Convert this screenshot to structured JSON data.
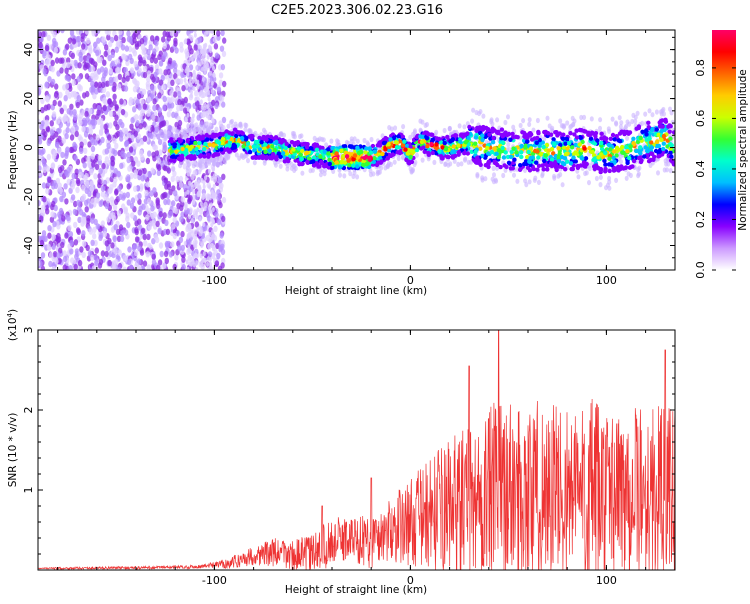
{
  "title": "C2E5.2023.306.02.23.G16",
  "chart_data": [
    {
      "type": "heatmap",
      "xlabel": "Height of straight line (km)",
      "ylabel": "Frequency (Hz)",
      "xlim": [
        -190,
        135
      ],
      "ylim": [
        -50,
        48
      ],
      "x_ticks": [
        -100,
        0,
        100
      ],
      "y_ticks": [
        -40,
        -20,
        0,
        20,
        40
      ],
      "grid": false,
      "colorbar": {
        "label": "Normalized spectral amplitude",
        "range": [
          0.0,
          0.95
        ],
        "ticks": [
          "0.0",
          "0.2",
          "0.4",
          "0.6",
          "0.8"
        ],
        "colors": [
          "#ffffff",
          "#cc99ff",
          "#8800ff",
          "#0000ff",
          "#00bfff",
          "#00ffcc",
          "#33ff33",
          "#ccff00",
          "#ffcc00",
          "#ff6600",
          "#ff0000",
          "#ff0066"
        ]
      },
      "ridge": {
        "x": [
          -120,
          -110,
          -100,
          -90,
          -85,
          -80,
          -70,
          -60,
          -50,
          -40,
          -30,
          -20,
          -15,
          -10,
          -5,
          0,
          5,
          10,
          15,
          20,
          25,
          30,
          40,
          50,
          60,
          70,
          80,
          90,
          100,
          110,
          120,
          130,
          135
        ],
        "y": [
          -1,
          0,
          1,
          3,
          2,
          0,
          0,
          -2,
          -3,
          -4,
          -4,
          -4,
          -2,
          1,
          2,
          -3,
          3,
          1,
          0,
          0,
          1,
          2,
          0,
          -1,
          -2,
          -1,
          -2,
          0,
          -3,
          -1,
          2,
          4,
          0
        ]
      }
    },
    {
      "type": "line",
      "xlabel": "Height of straight line (km)",
      "ylabel": "SNR (10 * v/v)",
      "y_scale_label": "(x10",
      "y_scale_exp": "4",
      "xlim": [
        -190,
        135
      ],
      "ylim": [
        0,
        3
      ],
      "x_ticks": [
        -100,
        0,
        100
      ],
      "y_ticks": [
        1,
        2,
        3
      ],
      "color": "#ee3333",
      "grid": false,
      "envelope": {
        "x": [
          -190,
          -130,
          -110,
          -100,
          -90,
          -80,
          -70,
          -60,
          -50,
          -40,
          -30,
          -20,
          -10,
          0,
          10,
          20,
          30,
          40,
          45,
          50,
          60,
          70,
          80,
          90,
          100,
          110,
          120,
          130,
          135
        ],
        "mean": [
          0.02,
          0.03,
          0.04,
          0.06,
          0.1,
          0.18,
          0.22,
          0.18,
          0.2,
          0.35,
          0.4,
          0.35,
          0.5,
          0.6,
          0.7,
          0.8,
          0.85,
          0.95,
          1.0,
          1.0,
          0.95,
          1.0,
          0.95,
          1.0,
          0.9,
          1.0,
          0.95,
          0.9,
          1.0
        ],
        "amplitude": [
          0.01,
          0.02,
          0.02,
          0.04,
          0.08,
          0.12,
          0.18,
          0.2,
          0.25,
          0.3,
          0.28,
          0.35,
          0.4,
          0.55,
          0.7,
          0.85,
          0.95,
          1.05,
          1.2,
          1.1,
          1.15,
          1.2,
          1.1,
          1.2,
          1.1,
          1.1,
          1.1,
          1.15,
          1.1
        ]
      },
      "peaks": [
        {
          "x": -45,
          "y": 0.8
        },
        {
          "x": -20,
          "y": 1.15
        },
        {
          "x": 45,
          "y": 3.0
        },
        {
          "x": 30,
          "y": 2.55
        },
        {
          "x": 130,
          "y": 2.75
        }
      ]
    }
  ]
}
